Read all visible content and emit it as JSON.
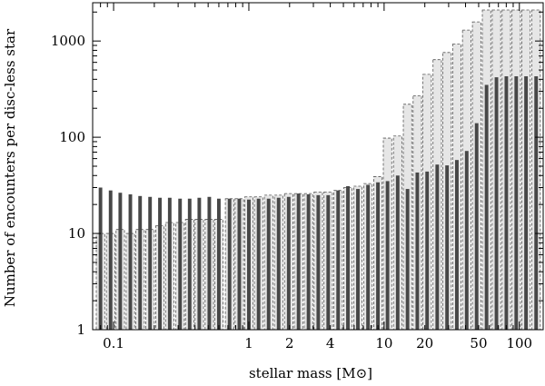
{
  "chart_data": {
    "type": "bar",
    "title": "",
    "xlabel": "stellar mass [M⊙]",
    "ylabel": "Number of encounters per disc-less star",
    "x_scale": "log",
    "y_scale": "log",
    "xlim": [
      0.07,
      150
    ],
    "ylim": [
      1,
      2500
    ],
    "x_ticks": [
      0.1,
      1,
      2,
      4,
      10,
      20,
      50,
      100
    ],
    "x_tick_labels": [
      "0.1",
      "1",
      "2",
      "4",
      "10",
      "20",
      "50",
      "100"
    ],
    "y_ticks": [
      1,
      10,
      100,
      1000
    ],
    "y_tick_labels": [
      "1",
      "10",
      "100",
      "1000"
    ],
    "grid": false,
    "colors": {
      "dark": "#474747",
      "light": "#e6e6e6",
      "light_edge": "#555555"
    },
    "x": [
      0.08,
      0.095,
      0.112,
      0.133,
      0.157,
      0.186,
      0.22,
      0.26,
      0.31,
      0.365,
      0.43,
      0.51,
      0.6,
      0.72,
      0.85,
      1.0,
      1.18,
      1.4,
      1.66,
      1.97,
      2.33,
      2.76,
      3.26,
      3.86,
      4.57,
      5.4,
      6.4,
      7.6,
      9.0,
      10.6,
      12.6,
      14.9,
      17.6,
      20.8,
      24.7,
      29.2,
      34.5,
      40.8,
      48.3,
      57.2,
      67.7,
      80.1,
      94.8,
      112,
      133
    ],
    "series": [
      {
        "style": "dark",
        "values": [
          30,
          28,
          26.5,
          25.5,
          24.5,
          24,
          23.5,
          23.5,
          23,
          23,
          23.5,
          24,
          23,
          23,
          23,
          22.5,
          23,
          23,
          23.5,
          24,
          26,
          25.5,
          25,
          25,
          28,
          31,
          29,
          32,
          34,
          35,
          40,
          29,
          43,
          44,
          52,
          51,
          58,
          72,
          140,
          350,
          420,
          430,
          430,
          430,
          430
        ]
      },
      {
        "style": "light",
        "values": [
          10,
          10,
          11,
          10,
          11,
          11,
          12,
          13,
          13,
          14,
          14,
          14,
          14,
          23,
          23,
          24,
          24,
          25,
          25,
          26,
          26,
          26,
          27,
          27,
          28,
          30,
          31,
          33,
          39,
          98,
          103,
          220,
          270,
          450,
          640,
          760,
          930,
          1300,
          1580,
          2100,
          2100,
          2100,
          2100,
          2100,
          2100
        ]
      }
    ]
  }
}
